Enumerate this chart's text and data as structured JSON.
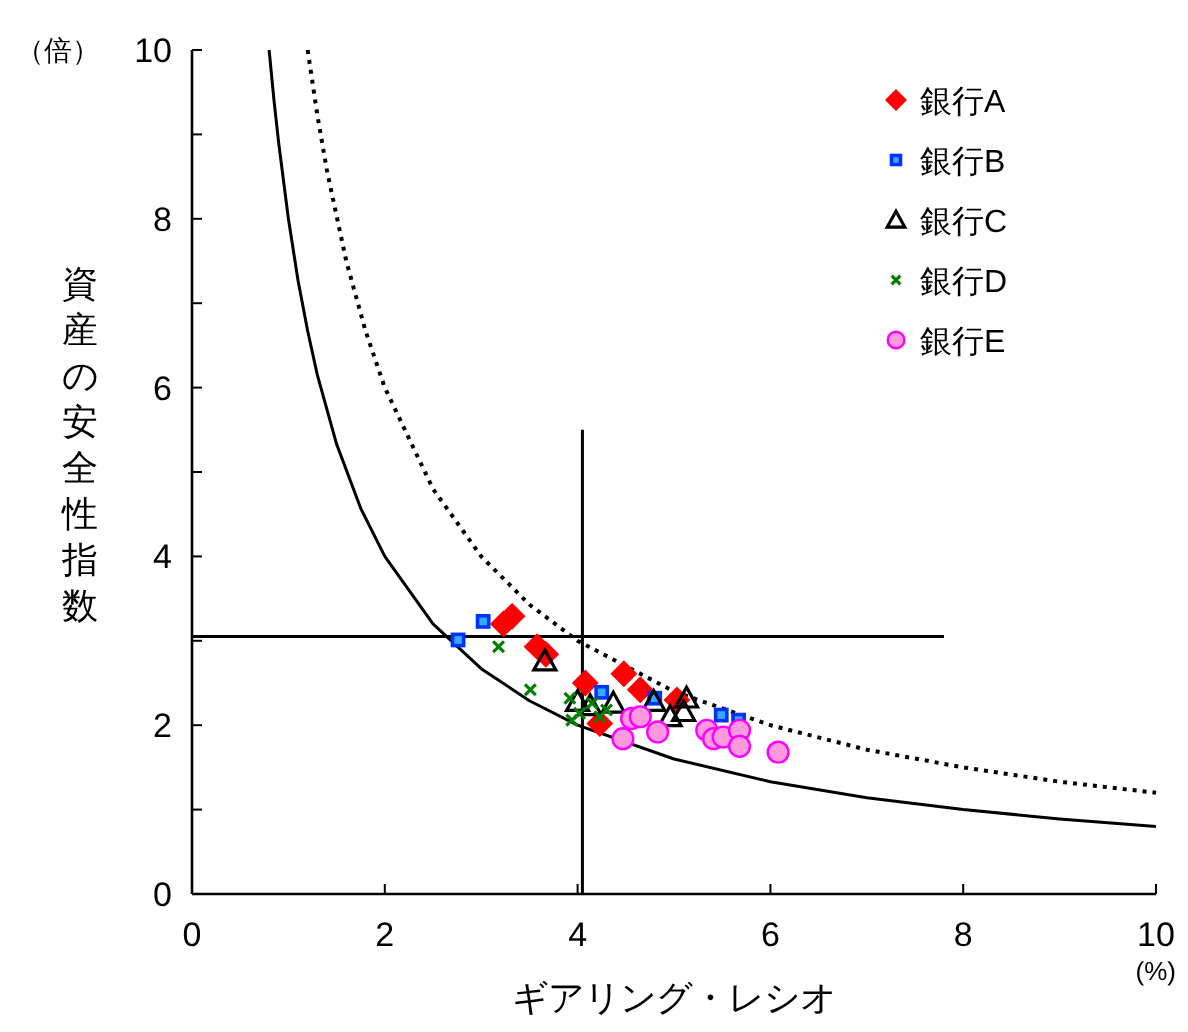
{
  "chart_data": {
    "type": "scatter",
    "xlabel": "ギアリング・レシオ",
    "ylabel": "資産の安全性指数",
    "annotations": [
      "（倍）",
      "(%)"
    ],
    "xlim": [
      0,
      10
    ],
    "xticks": [
      0,
      2,
      4,
      6,
      8,
      10
    ],
    "ylim": [
      0,
      10
    ],
    "yticks": [
      0,
      {
        "value": 1,
        "label": null
      },
      2,
      {
        "value": 3,
        "label": null
      },
      4,
      {
        "value": 5,
        "label": null
      },
      6,
      {
        "value": 7,
        "label": null
      },
      8,
      {
        "value": 9,
        "label": null
      },
      10
    ],
    "grid": false,
    "legend": "top right",
    "series": [
      {
        "type": "line",
        "color": "#000000",
        "line_style": "solid",
        "marker": "none",
        "x": [
          0.8,
          0.85,
          0.9,
          1,
          1.1,
          1.2,
          1.3,
          1.5,
          1.75,
          2,
          2.5,
          3,
          3.5,
          4,
          5,
          6,
          7,
          8,
          9,
          10
        ],
        "values": [
          10,
          9.41,
          8.89,
          8,
          7.27,
          6.67,
          6.15,
          5.33,
          4.57,
          4,
          3.2,
          2.67,
          2.29,
          2,
          1.6,
          1.33,
          1.14,
          1,
          0.89,
          0.8
        ]
      },
      {
        "type": "line",
        "color": "#000000",
        "line_style": "dotted",
        "marker": "none",
        "x": [
          1.2,
          1.3,
          1.4,
          1.6,
          1.8,
          2,
          2.5,
          3,
          3.5,
          4,
          5,
          6,
          7,
          8,
          9,
          10
        ],
        "values": [
          10,
          9.23,
          8.57,
          7.5,
          6.67,
          6,
          4.8,
          4,
          3.43,
          3,
          2.4,
          2,
          1.71,
          1.5,
          1.33,
          1.2
        ]
      },
      {
        "type": "line",
        "color": "#000000",
        "line_style": "solid",
        "marker": "none",
        "x": [
          4.05,
          4.05
        ],
        "values": [
          0,
          5.5
        ]
      },
      {
        "type": "line",
        "color": "#000000",
        "line_style": "solid",
        "marker": "none",
        "x": [
          0,
          7.8
        ],
        "values": [
          3.05,
          3.05
        ]
      },
      {
        "name": "銀行A",
        "color": "#ff0000",
        "marker": "diamond",
        "x": [
          3.23,
          3.32,
          3.58,
          3.67,
          4.08,
          4.48,
          4.65,
          5.03,
          4.23
        ],
        "values": [
          3.2,
          3.29,
          2.93,
          2.84,
          2.5,
          2.61,
          2.42,
          2.3,
          2.02
        ]
      },
      {
        "name": "銀行B",
        "color": "#0033ff",
        "marker": "square",
        "x": [
          3.02,
          2.76,
          4.25,
          4.8,
          5.49,
          5.67
        ],
        "values": [
          3.23,
          3.01,
          2.39,
          2.32,
          2.12,
          2.06
        ]
      },
      {
        "name": "銀行C",
        "color": "#000000",
        "marker": "triangle",
        "x": [
          3.66,
          4.0,
          4.37,
          4.79,
          4.96,
          5.1,
          5.13,
          4.13
        ],
        "values": [
          2.76,
          2.28,
          2.26,
          2.28,
          2.1,
          2.16,
          2.32,
          2.23
        ]
      },
      {
        "name": "銀行D",
        "color": "#008000",
        "marker": "cross",
        "x": [
          3.18,
          3.51,
          3.92,
          3.94,
          4.02,
          4.15,
          4.23,
          4.3
        ],
        "values": [
          2.93,
          2.42,
          2.32,
          2.06,
          2.14,
          2.26,
          2.1,
          2.18
        ]
      },
      {
        "name": "銀行E",
        "color": "#ff00ff",
        "marker": "circle",
        "x": [
          4.47,
          4.56,
          4.65,
          4.83,
          5.34,
          5.41,
          5.51,
          5.68,
          5.68,
          6.08
        ],
        "values": [
          1.84,
          2.08,
          2.1,
          1.92,
          1.94,
          1.84,
          1.86,
          1.94,
          1.75,
          1.68
        ]
      }
    ]
  }
}
